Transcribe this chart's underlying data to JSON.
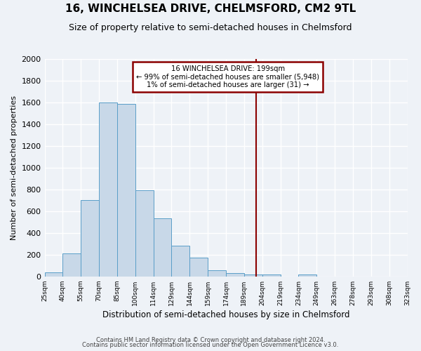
{
  "title": "16, WINCHELSEA DRIVE, CHELMSFORD, CM2 9TL",
  "subtitle": "Size of property relative to semi-detached houses in Chelmsford",
  "xlabel": "Distribution of semi-detached houses by size in Chelmsford",
  "ylabel": "Number of semi-detached properties",
  "bin_labels": [
    "25sqm",
    "40sqm",
    "55sqm",
    "70sqm",
    "85sqm",
    "100sqm",
    "114sqm",
    "129sqm",
    "144sqm",
    "159sqm",
    "174sqm",
    "189sqm",
    "204sqm",
    "219sqm",
    "234sqm",
    "249sqm",
    "263sqm",
    "278sqm",
    "293sqm",
    "308sqm",
    "323sqm"
  ],
  "bar_heights": [
    40,
    215,
    700,
    1600,
    1590,
    790,
    535,
    280,
    170,
    60,
    30,
    20,
    20,
    0,
    15,
    0,
    0,
    0,
    0,
    0
  ],
  "bar_color": "#c8d8e8",
  "bar_edge_color": "#5a9ec8",
  "vline_color": "#8b0000",
  "vline_x": 11.667,
  "annotation_title": "16 WINCHELSEA DRIVE: 199sqm",
  "annotation_line1": "← 99% of semi-detached houses are smaller (5,948)",
  "annotation_line2": "1% of semi-detached houses are larger (31) →",
  "annotation_box_color": "#8b0000",
  "ylim": [
    0,
    2000
  ],
  "yticks": [
    0,
    200,
    400,
    600,
    800,
    1000,
    1200,
    1400,
    1600,
    1800,
    2000
  ],
  "background_color": "#eef2f7",
  "grid_color": "#ffffff",
  "footer1": "Contains HM Land Registry data © Crown copyright and database right 2024.",
  "footer2": "Contains public sector information licensed under the Open Government Licence v3.0."
}
